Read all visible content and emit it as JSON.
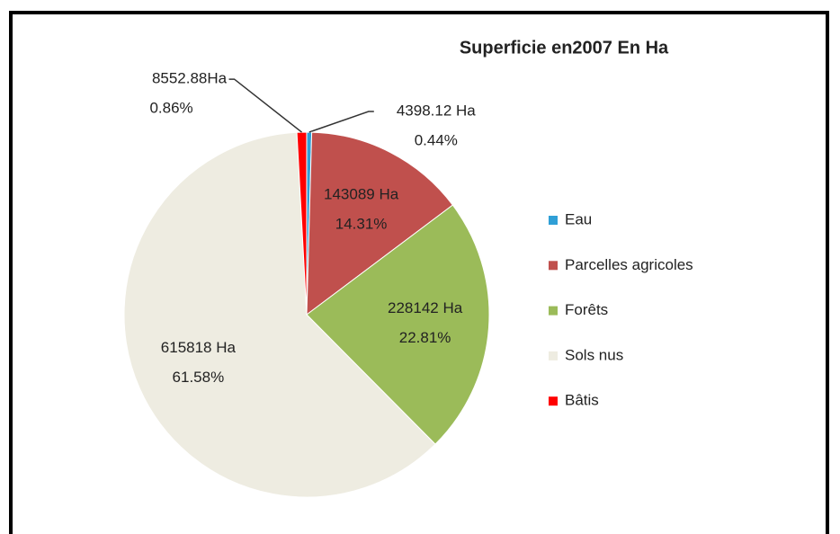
{
  "chart_data": {
    "type": "pie",
    "title": "Superficie en2007 En Ha",
    "categories": [
      "Eau",
      "Parcelles agricoles",
      "Forêts",
      "Sols nus",
      "Bâtis"
    ],
    "values": [
      4398.12,
      143089,
      228142,
      615818,
      8552.88
    ],
    "value_labels": [
      "4398.12 Ha",
      "143089 Ha",
      "228142 Ha",
      "615818 Ha",
      "8552.88Ha"
    ],
    "share_labels": [
      "0.44%",
      "14.31%",
      "22.81%",
      "61.58%",
      "0.86%"
    ],
    "colors": [
      "#2f9fd6",
      "#c0504d",
      "#9bbb59",
      "#eeece1",
      "#ff0000"
    ],
    "legend": "right"
  }
}
